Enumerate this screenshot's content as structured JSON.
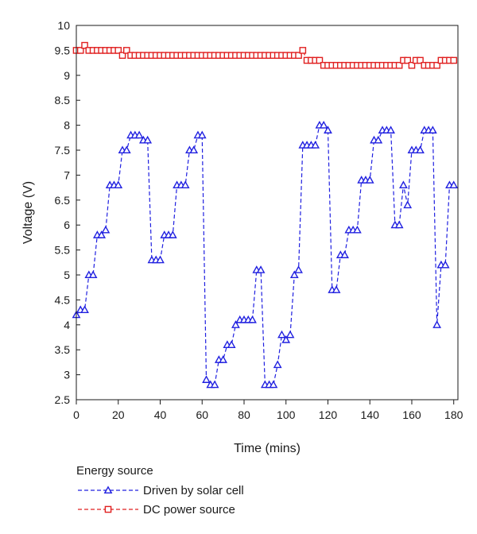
{
  "chart_data": {
    "type": "line",
    "title": "",
    "xlabel": "Time (mins)",
    "ylabel": "Voltage (V)",
    "xlim": [
      0,
      182
    ],
    "ylim": [
      2.5,
      10
    ],
    "x_ticks": [
      0,
      20,
      40,
      60,
      80,
      100,
      120,
      140,
      160,
      180
    ],
    "y_ticks": [
      2.5,
      3,
      3.5,
      4,
      4.5,
      5,
      5.5,
      6,
      6.5,
      7,
      7.5,
      8,
      8.5,
      9,
      9.5,
      10
    ],
    "y_tick_labels": [
      "2.5",
      "3",
      "3.5",
      "4",
      "4.5",
      "5",
      "5.5",
      "6",
      "6.5",
      "7",
      "7.5",
      "8",
      "8.5",
      "9",
      "9.5",
      "10"
    ],
    "grid": false,
    "legend": {
      "title": "Energy source",
      "placement": "bottom-left"
    },
    "series": [
      {
        "name": "Driven by solar cell",
        "color": "#2020e0",
        "marker": "triangle",
        "line_style": "dashed",
        "x": [
          0,
          2,
          4,
          6,
          8,
          10,
          12,
          14,
          16,
          18,
          20,
          22,
          24,
          26,
          28,
          30,
          32,
          34,
          36,
          38,
          40,
          42,
          44,
          46,
          48,
          50,
          52,
          54,
          56,
          58,
          60,
          62,
          64,
          66,
          68,
          70,
          72,
          74,
          76,
          78,
          80,
          82,
          84,
          86,
          88,
          90,
          92,
          94,
          96,
          98,
          100,
          102,
          104,
          106,
          108,
          110,
          112,
          114,
          116,
          118,
          120,
          122,
          124,
          126,
          128,
          130,
          132,
          134,
          136,
          138,
          140,
          142,
          144,
          146,
          148,
          150,
          152,
          154,
          156,
          158,
          160,
          162,
          164,
          166,
          168,
          170,
          172,
          174,
          176,
          178,
          180
        ],
        "values": [
          4.2,
          4.3,
          4.3,
          5.0,
          5.0,
          5.8,
          5.8,
          5.9,
          6.8,
          6.8,
          6.8,
          7.5,
          7.5,
          7.8,
          7.8,
          7.8,
          7.7,
          7.7,
          5.3,
          5.3,
          5.3,
          5.8,
          5.8,
          5.8,
          6.8,
          6.8,
          6.8,
          7.5,
          7.5,
          7.8,
          7.8,
          2.9,
          2.8,
          2.8,
          3.3,
          3.3,
          3.6,
          3.6,
          4.0,
          4.1,
          4.1,
          4.1,
          4.1,
          5.1,
          5.1,
          2.8,
          2.8,
          2.8,
          3.2,
          3.8,
          3.7,
          3.8,
          5.0,
          5.1,
          7.6,
          7.6,
          7.6,
          7.6,
          8.0,
          8.0,
          7.9,
          4.7,
          4.7,
          5.4,
          5.4,
          5.9,
          5.9,
          5.9,
          6.9,
          6.9,
          6.9,
          7.7,
          7.7,
          7.9,
          7.9,
          7.9,
          6.0,
          6.0,
          6.8,
          6.4,
          7.5,
          7.5,
          7.5,
          7.9,
          7.9,
          7.9,
          4.0,
          5.2,
          5.2,
          6.8,
          6.8
        ]
      },
      {
        "name": "DC power source",
        "color": "#e02020",
        "marker": "square",
        "line_style": "dashed",
        "x": [
          0,
          2,
          4,
          6,
          8,
          10,
          12,
          14,
          16,
          18,
          20,
          22,
          24,
          26,
          28,
          30,
          32,
          34,
          36,
          38,
          40,
          42,
          44,
          46,
          48,
          50,
          52,
          54,
          56,
          58,
          60,
          62,
          64,
          66,
          68,
          70,
          72,
          74,
          76,
          78,
          80,
          82,
          84,
          86,
          88,
          90,
          92,
          94,
          96,
          98,
          100,
          102,
          104,
          106,
          108,
          110,
          112,
          114,
          116,
          118,
          120,
          122,
          124,
          126,
          128,
          130,
          132,
          134,
          136,
          138,
          140,
          142,
          144,
          146,
          148,
          150,
          152,
          154,
          156,
          158,
          160,
          162,
          164,
          166,
          168,
          170,
          172,
          174,
          176,
          178,
          180
        ],
        "values": [
          9.5,
          9.5,
          9.6,
          9.5,
          9.5,
          9.5,
          9.5,
          9.5,
          9.5,
          9.5,
          9.5,
          9.4,
          9.5,
          9.4,
          9.4,
          9.4,
          9.4,
          9.4,
          9.4,
          9.4,
          9.4,
          9.4,
          9.4,
          9.4,
          9.4,
          9.4,
          9.4,
          9.4,
          9.4,
          9.4,
          9.4,
          9.4,
          9.4,
          9.4,
          9.4,
          9.4,
          9.4,
          9.4,
          9.4,
          9.4,
          9.4,
          9.4,
          9.4,
          9.4,
          9.4,
          9.4,
          9.4,
          9.4,
          9.4,
          9.4,
          9.4,
          9.4,
          9.4,
          9.4,
          9.5,
          9.3,
          9.3,
          9.3,
          9.3,
          9.2,
          9.2,
          9.2,
          9.2,
          9.2,
          9.2,
          9.2,
          9.2,
          9.2,
          9.2,
          9.2,
          9.2,
          9.2,
          9.2,
          9.2,
          9.2,
          9.2,
          9.2,
          9.2,
          9.3,
          9.3,
          9.2,
          9.3,
          9.3,
          9.2,
          9.2,
          9.2,
          9.2,
          9.3,
          9.3,
          9.3,
          9.3
        ]
      }
    ]
  }
}
